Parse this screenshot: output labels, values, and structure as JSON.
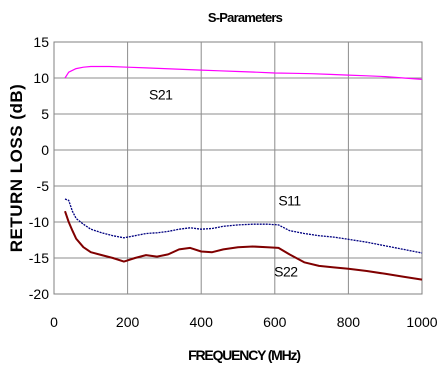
{
  "chart_data": {
    "type": "line",
    "title": "S-Parameters",
    "xlabel": "FREQUENCY (MHz)",
    "ylabel": "RETURN LOSS (dB)",
    "xlim": [
      0,
      1000
    ],
    "ylim": [
      -20,
      15
    ],
    "xticks": [
      0,
      200,
      400,
      600,
      800,
      1000
    ],
    "yticks": [
      15,
      10,
      5,
      0,
      -5,
      -10,
      -15,
      -20
    ],
    "grid": true,
    "legend": "none",
    "series": [
      {
        "name": "S21",
        "color": "#ff00ff",
        "x": [
          30,
          40,
          60,
          80,
          100,
          150,
          200,
          250,
          300,
          350,
          400,
          450,
          500,
          550,
          600,
          650,
          700,
          750,
          800,
          850,
          900,
          950,
          1000
        ],
        "values": [
          10.0,
          10.8,
          11.3,
          11.5,
          11.6,
          11.6,
          11.5,
          11.4,
          11.3,
          11.2,
          11.1,
          11.0,
          10.9,
          10.8,
          10.7,
          10.65,
          10.6,
          10.5,
          10.4,
          10.3,
          10.2,
          10.0,
          9.8
        ]
      },
      {
        "name": "S11",
        "color": "#000080",
        "x": [
          30,
          40,
          50,
          60,
          80,
          100,
          130,
          160,
          190,
          220,
          250,
          280,
          310,
          340,
          370,
          400,
          430,
          460,
          500,
          540,
          580,
          610,
          640,
          680,
          720,
          760,
          800,
          850,
          900,
          950,
          1000
        ],
        "values": [
          -6.8,
          -7.0,
          -8.5,
          -9.5,
          -10.3,
          -11.0,
          -11.5,
          -11.9,
          -12.2,
          -11.9,
          -11.6,
          -11.5,
          -11.3,
          -11.0,
          -10.8,
          -11.0,
          -10.9,
          -10.6,
          -10.4,
          -10.3,
          -10.3,
          -10.4,
          -11.2,
          -11.6,
          -11.9,
          -12.1,
          -12.4,
          -12.8,
          -13.3,
          -13.8,
          -14.3
        ]
      },
      {
        "name": "S22",
        "color": "#800000",
        "x": [
          30,
          40,
          50,
          60,
          80,
          100,
          130,
          160,
          190,
          220,
          250,
          280,
          310,
          340,
          370,
          400,
          430,
          460,
          500,
          540,
          580,
          610,
          640,
          680,
          720,
          760,
          800,
          850,
          900,
          950,
          1000
        ],
        "values": [
          -8.5,
          -10.0,
          -11.2,
          -12.3,
          -13.5,
          -14.2,
          -14.6,
          -15.0,
          -15.5,
          -15.0,
          -14.6,
          -14.8,
          -14.5,
          -13.8,
          -13.6,
          -14.1,
          -14.2,
          -13.8,
          -13.5,
          -13.4,
          -13.5,
          -13.6,
          -14.5,
          -15.6,
          -16.1,
          -16.3,
          -16.5,
          -16.8,
          -17.2,
          -17.6,
          -18.0
        ]
      }
    ],
    "annotations": [
      {
        "text": "S21",
        "x": 290,
        "y": 7.7
      },
      {
        "text": "S11",
        "x": 640,
        "y": -7.0
      },
      {
        "text": "S22",
        "x": 630,
        "y": -16.9
      }
    ]
  }
}
